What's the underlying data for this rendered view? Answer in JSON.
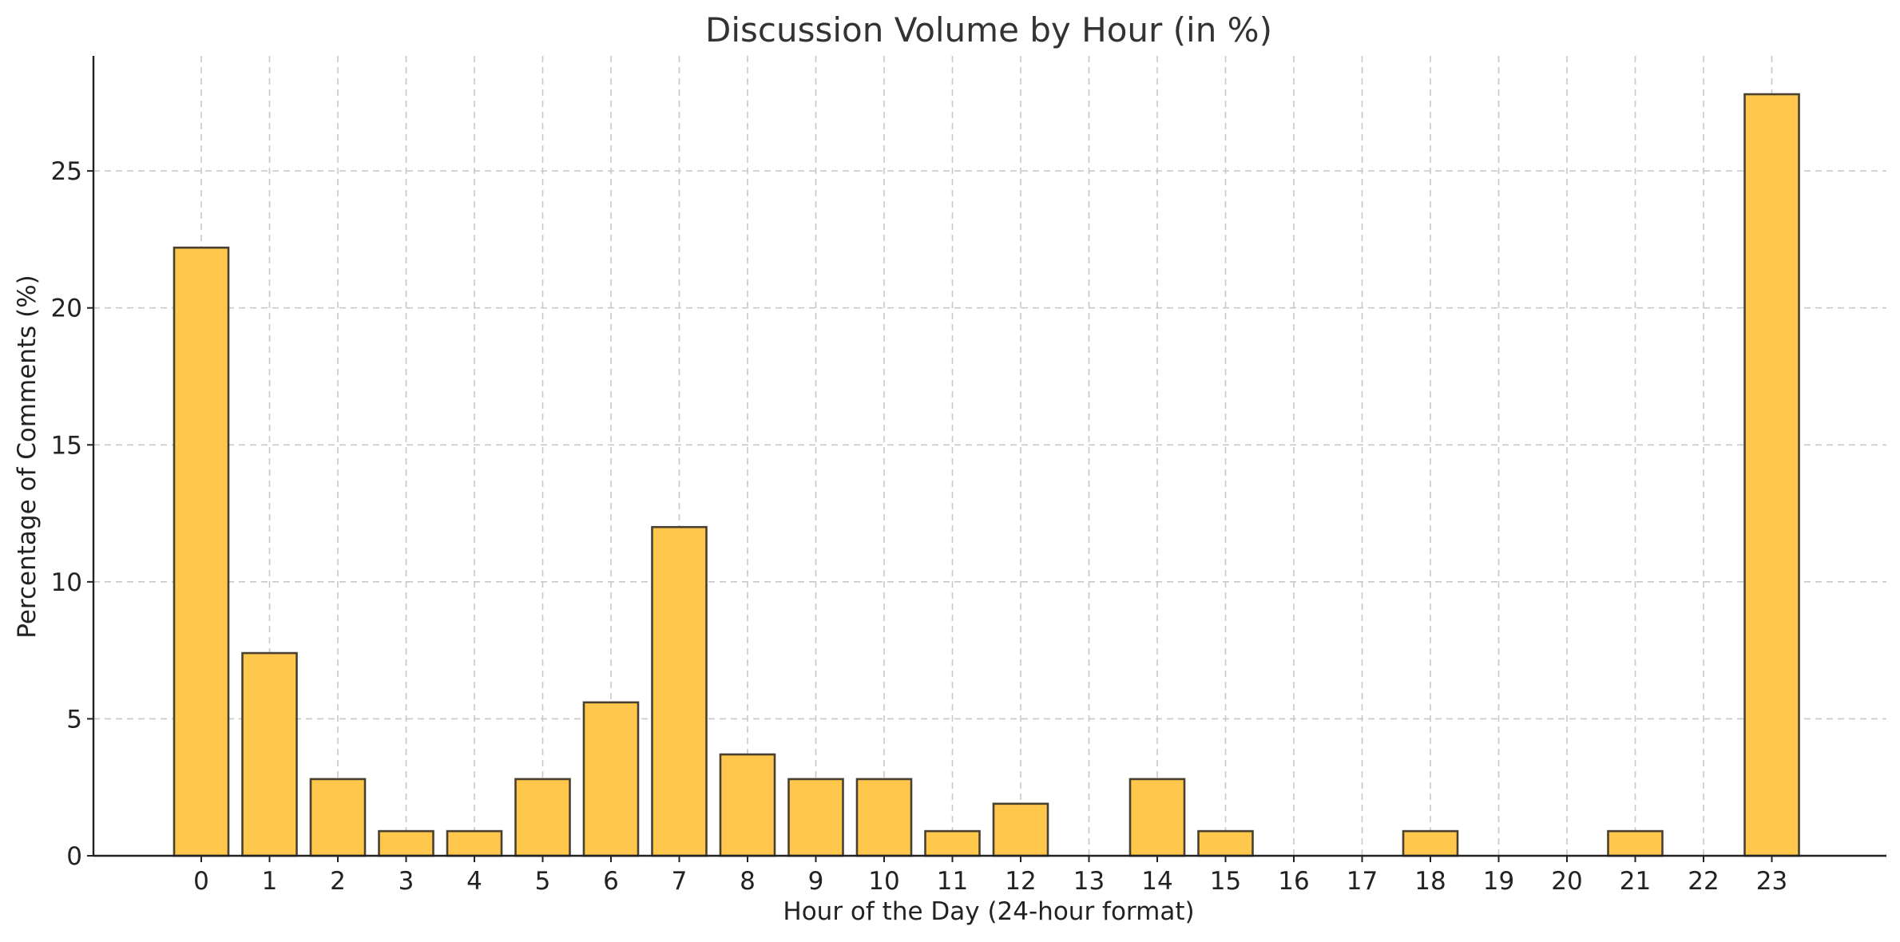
{
  "chart_data": {
    "type": "bar",
    "title": "Discussion Volume by Hour (in %)",
    "xlabel": "Hour of the Day (24-hour format)",
    "ylabel": "Percentage of Comments (%)",
    "categories": [
      "0",
      "1",
      "2",
      "3",
      "4",
      "5",
      "6",
      "7",
      "8",
      "9",
      "10",
      "11",
      "12",
      "13",
      "14",
      "15",
      "16",
      "17",
      "18",
      "19",
      "20",
      "21",
      "22",
      "23"
    ],
    "values": [
      22.2,
      7.4,
      2.8,
      0.9,
      0.9,
      2.8,
      5.6,
      12.0,
      3.7,
      2.8,
      2.8,
      0.9,
      1.9,
      0,
      2.8,
      0.9,
      0,
      0,
      0.9,
      0,
      0,
      0.9,
      0,
      27.8
    ],
    "yticks": [
      0,
      5,
      10,
      15,
      20,
      25
    ],
    "ylim": [
      0,
      29.2
    ],
    "grid": true,
    "colors": {
      "bar_fill": "#ffc84d",
      "bar_edge": "#4a4032",
      "grid": "#c8c8c8",
      "axis": "#222222"
    }
  }
}
